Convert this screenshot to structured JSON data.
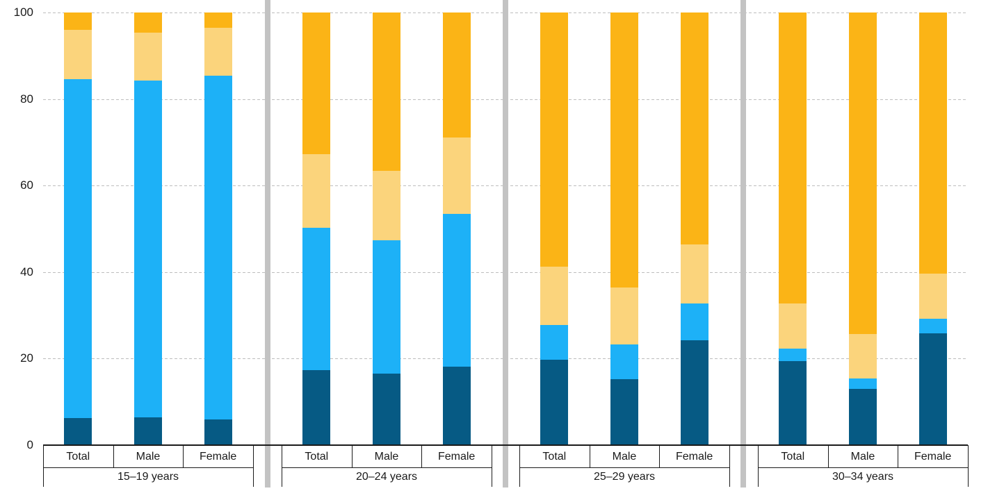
{
  "chart_data": {
    "type": "bar",
    "stacked": true,
    "title": "",
    "xlabel": "",
    "ylabel": "",
    "unit": "percent",
    "ylim": [
      0,
      100
    ],
    "yticks": [
      0,
      20,
      40,
      60,
      80,
      100
    ],
    "grid": "horizontal-dashed",
    "legend": "none",
    "series_names": [
      "dark-blue-bottom",
      "light-blue",
      "light-amber",
      "amber-top"
    ],
    "series_colors": [
      "#065a84",
      "#1db1f7",
      "#fbd47c",
      "#fbb416"
    ],
    "separator_color": "#c3c3c3",
    "groups": [
      {
        "label": "15–19 years",
        "bars": [
          {
            "label": "Total",
            "values": [
              6.2,
              78.4,
              11.4,
              4.0
            ]
          },
          {
            "label": "Male",
            "values": [
              6.5,
              77.7,
              11.2,
              4.6
            ]
          },
          {
            "label": "Female",
            "values": [
              6.0,
              79.4,
              11.1,
              3.5
            ]
          }
        ]
      },
      {
        "label": "20–24 years",
        "bars": [
          {
            "label": "Total",
            "values": [
              17.3,
              32.9,
              17.0,
              32.8
            ]
          },
          {
            "label": "Male",
            "values": [
              16.5,
              30.8,
              16.1,
              36.6
            ]
          },
          {
            "label": "Female",
            "values": [
              18.2,
              35.2,
              17.7,
              28.9
            ]
          }
        ]
      },
      {
        "label": "25–29 years",
        "bars": [
          {
            "label": "Total",
            "values": [
              19.7,
              8.0,
              13.6,
              58.7
            ]
          },
          {
            "label": "Male",
            "values": [
              15.3,
              7.9,
              13.3,
              63.5
            ]
          },
          {
            "label": "Female",
            "values": [
              24.3,
              8.4,
              13.7,
              53.6
            ]
          }
        ]
      },
      {
        "label": "30–34 years",
        "bars": [
          {
            "label": "Total",
            "values": [
              19.4,
              2.9,
              10.4,
              67.3
            ]
          },
          {
            "label": "Male",
            "values": [
              13.0,
              2.4,
              10.3,
              74.3
            ]
          },
          {
            "label": "Female",
            "values": [
              25.9,
              3.3,
              10.5,
              60.3
            ]
          }
        ]
      }
    ]
  }
}
